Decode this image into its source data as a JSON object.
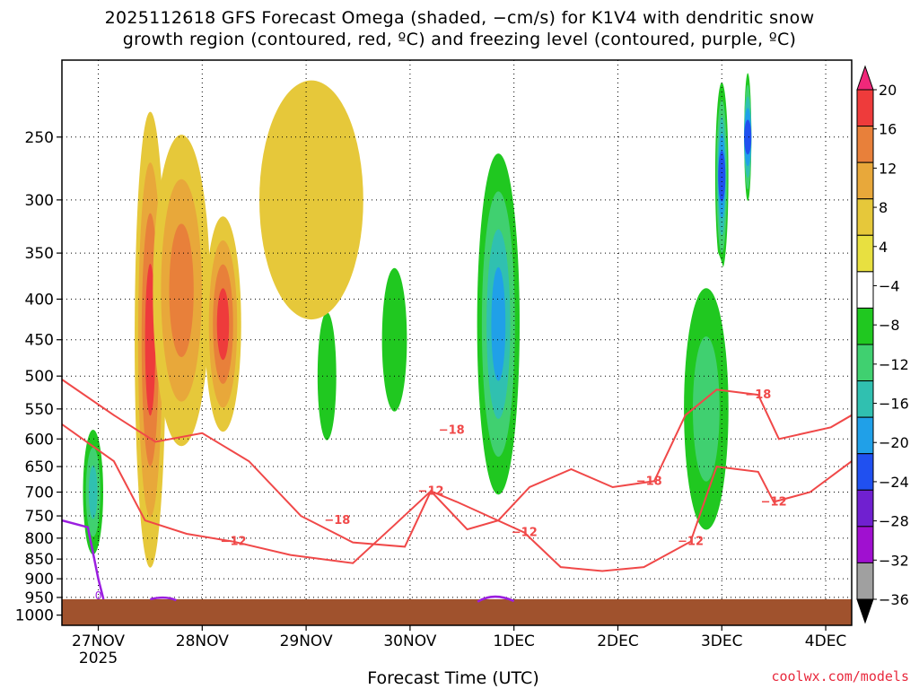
{
  "title_line1": "2025112618 GFS Forecast Omega (shaded, −cm/s) for K1V4 with dendritic snow",
  "title_line2": "growth region (contoured, red, ºC) and freezing level (contoured, purple, ºC)",
  "xaxis_title": "Forecast Time (UTC)",
  "credit": "coolwx.com/models",
  "chart_data": {
    "type": "heatmap",
    "y_axis": {
      "label": "",
      "ticks": [
        250,
        300,
        350,
        400,
        450,
        500,
        550,
        600,
        650,
        700,
        750,
        800,
        850,
        900,
        950,
        1000
      ],
      "range": [
        200,
        1030
      ],
      "scale": "log"
    },
    "x_axis": {
      "label": "Forecast Time (UTC)",
      "ticks": [
        "27NOV",
        "28NOV",
        "29NOV",
        "30NOV",
        "1DEC",
        "2DEC",
        "3DEC",
        "4DEC"
      ],
      "tick_day_offsets": [
        0.35,
        1.35,
        2.35,
        3.35,
        4.35,
        5.35,
        6.35,
        7.35
      ],
      "year_label": "2025",
      "range_days": [
        0,
        7.6
      ]
    },
    "colorbar": {
      "tick_labels": [
        "20",
        "16",
        "12",
        "8",
        "4",
        "−4",
        "−8",
        "−12",
        "−16",
        "−20",
        "−24",
        "−28",
        "−32",
        "−36"
      ],
      "colors": [
        "#f0287a",
        "#ee3b3b",
        "#e8803a",
        "#e8a83a",
        "#e6c83a",
        "#e8e040",
        "#ffffff",
        "#20c820",
        "#40d070",
        "#30c0b0",
        "#20a0e8",
        "#2050f0",
        "#7020d0",
        "#a010d0",
        "#a0a0a0",
        "#000000"
      ],
      "extend": "both"
    },
    "omega_features": [
      {
        "day": 0.85,
        "hpa": 450,
        "value": 20,
        "day_span": 0.3,
        "hpa_span": 600
      },
      {
        "day": 1.15,
        "hpa": 390,
        "value": 16,
        "day_span": 0.55,
        "hpa_span": 330
      },
      {
        "day": 1.55,
        "hpa": 430,
        "value": 18,
        "day_span": 0.35,
        "hpa_span": 260
      },
      {
        "day": 0.3,
        "hpa": 700,
        "value": -20,
        "day_span": 0.25,
        "hpa_span": 320
      },
      {
        "day": 4.2,
        "hpa": 430,
        "value": -24,
        "day_span": 0.5,
        "hpa_span": 480
      },
      {
        "day": 6.35,
        "hpa": 280,
        "value": -28,
        "day_span": 0.15,
        "hpa_span": 200
      },
      {
        "day": 6.6,
        "hpa": 250,
        "value": -28,
        "day_span": 0.08,
        "hpa_span": 120
      },
      {
        "day": 3.2,
        "hpa": 450,
        "value": -12,
        "day_span": 0.4,
        "hpa_span": 300
      },
      {
        "day": 2.55,
        "hpa": 500,
        "value": -10,
        "day_span": 0.3,
        "hpa_span": 300
      },
      {
        "day": 2.4,
        "hpa": 300,
        "value": 6,
        "day_span": 1.0,
        "hpa_span": 200
      },
      {
        "day": 6.2,
        "hpa": 550,
        "value": -14,
        "day_span": 0.6,
        "hpa_span": 500
      }
    ],
    "contours": {
      "dgz": {
        "color": "#f04848",
        "labels": [
          {
            "text": "−18",
            "day": 3.75,
            "hpa": 585
          },
          {
            "text": "−12",
            "day": 3.55,
            "hpa": 698
          },
          {
            "text": "−18",
            "day": 2.65,
            "hpa": 760
          },
          {
            "text": "−12",
            "day": 1.65,
            "hpa": 808
          },
          {
            "text": "−12",
            "day": 4.45,
            "hpa": 787
          },
          {
            "text": "−18",
            "day": 5.65,
            "hpa": 678
          },
          {
            "text": "−12",
            "day": 6.05,
            "hpa": 808
          },
          {
            "text": "−18",
            "day": 6.7,
            "hpa": 528
          },
          {
            "text": "−12",
            "day": 6.85,
            "hpa": 720
          }
        ]
      },
      "freezing_level": {
        "color": "#9b1ee0",
        "labels": [
          {
            "text": "0",
            "day": 0.35,
            "hpa": 945
          }
        ]
      }
    },
    "terrain": {
      "color": "#a0522d",
      "surface_hpa": 955
    }
  }
}
